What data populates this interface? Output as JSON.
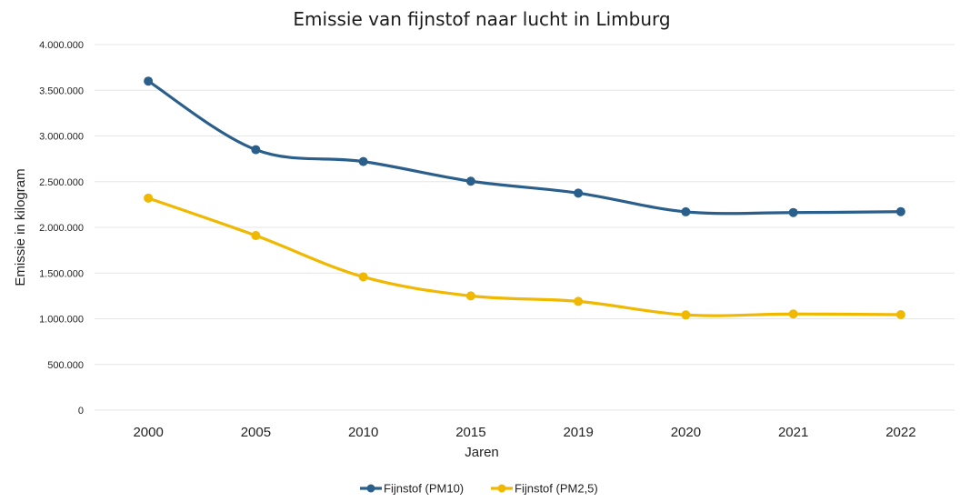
{
  "chart_data": {
    "type": "line",
    "title": "Emissie van fijnstof naar lucht in Limburg",
    "xlabel": "Jaren",
    "ylabel": "Emissie in kilogram",
    "categories": [
      "2000",
      "2005",
      "2010",
      "2015",
      "2019",
      "2020",
      "2021",
      "2022"
    ],
    "ylim": [
      0,
      4000000
    ],
    "yticks": [
      0,
      500000,
      1000000,
      1500000,
      2000000,
      2500000,
      3000000,
      3500000,
      4000000
    ],
    "ytick_labels": [
      "0",
      "500.000",
      "1.000.000",
      "1.500.000",
      "2.000.000",
      "2.500.000",
      "3.000.000",
      "3.500.000",
      "4.000.000"
    ],
    "grid": true,
    "smooth": true,
    "legend_position": "bottom",
    "series": [
      {
        "name": "Fijnstof (PM10)",
        "color": "#2a5f8c",
        "values": [
          3600000,
          2850000,
          2720000,
          2505000,
          2375000,
          2170000,
          2162000,
          2172000
        ]
      },
      {
        "name": "Fijnstof (PM2,5)",
        "color": "#f0b800",
        "values": [
          2320000,
          1910000,
          1458000,
          1250000,
          1190000,
          1042000,
          1052000,
          1045000
        ]
      }
    ]
  }
}
